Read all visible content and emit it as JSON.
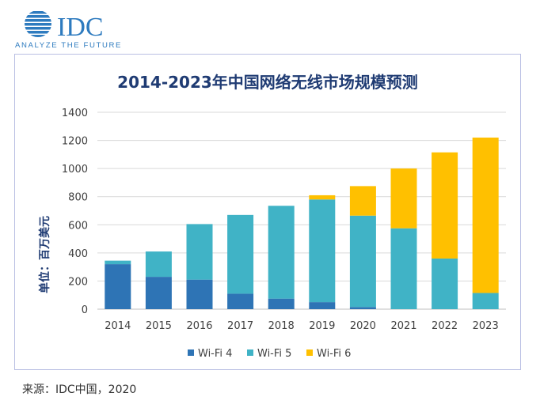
{
  "logo": {
    "brand": "IDC",
    "tagline": "ANALYZE THE FUTURE",
    "color": "#2e7bbf"
  },
  "source": "来源：IDC中国，2020",
  "chart_data": {
    "type": "bar",
    "stacked": true,
    "title": "2014-2023年中国网络无线市场规模预测",
    "ylabel": "单位：百万美元",
    "xlabel": "",
    "ylim": [
      0,
      1400
    ],
    "yticks": [
      0,
      200,
      400,
      600,
      800,
      1000,
      1200,
      1400
    ],
    "grid": true,
    "legend_position": "bottom",
    "categories": [
      "2014",
      "2015",
      "2016",
      "2017",
      "2018",
      "2019",
      "2020",
      "2021",
      "2022",
      "2023"
    ],
    "series": [
      {
        "name": "Wi-Fi 4",
        "color": "#2e74b5",
        "values": [
          320,
          230,
          210,
          110,
          75,
          50,
          15,
          0,
          0,
          0
        ]
      },
      {
        "name": "Wi-Fi 5",
        "color": "#40b3c6",
        "values": [
          25,
          180,
          395,
          560,
          660,
          730,
          650,
          575,
          360,
          115
        ]
      },
      {
        "name": "Wi-Fi 6",
        "color": "#ffc000",
        "values": [
          0,
          0,
          0,
          0,
          0,
          30,
          210,
          425,
          755,
          1105
        ]
      }
    ]
  }
}
